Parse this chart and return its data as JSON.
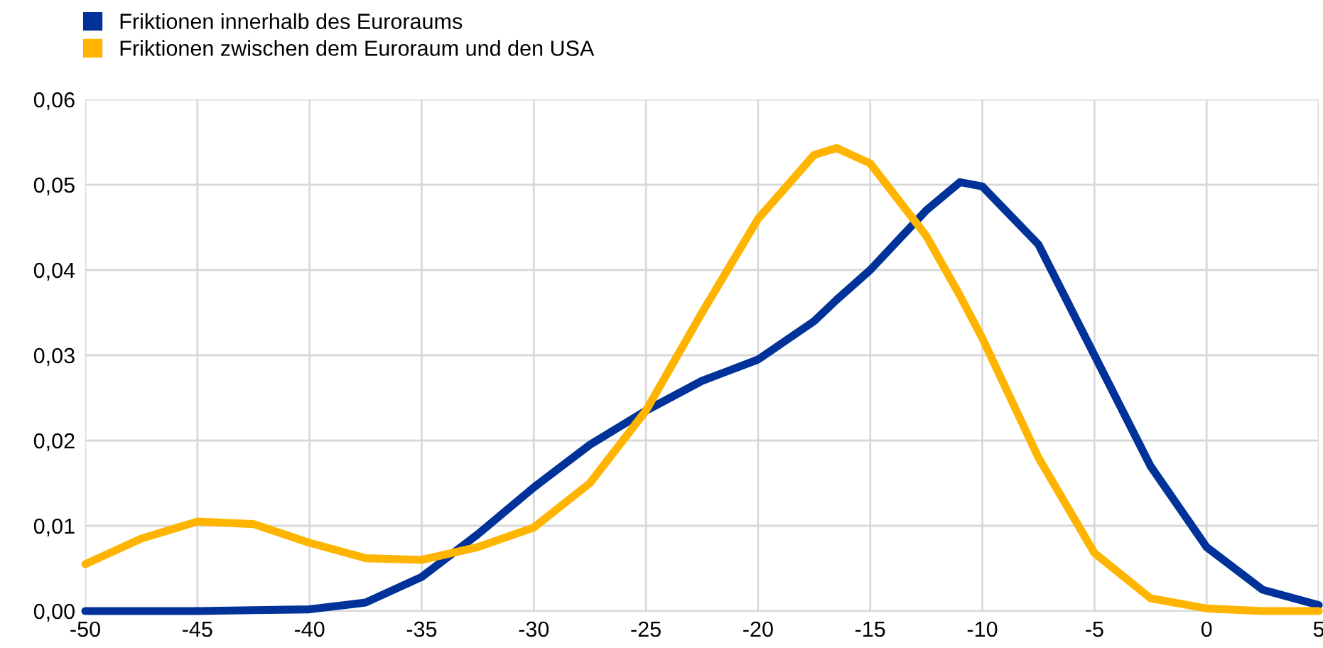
{
  "chart_data": {
    "type": "line",
    "x": [
      -50,
      -47.5,
      -45,
      -42.5,
      -40,
      -37.5,
      -35,
      -32.5,
      -30,
      -27.5,
      -25,
      -22.5,
      -20,
      -17.5,
      -16.5,
      -15,
      -12.5,
      -11,
      -10,
      -7.5,
      -5,
      -2.5,
      0,
      2.5,
      5
    ],
    "series": [
      {
        "name": "Friktionen innerhalb des Euroraums",
        "color": "#003299",
        "values": [
          0,
          0,
          0,
          0.0001,
          0.0002,
          0.001,
          0.004,
          0.009,
          0.0145,
          0.0195,
          0.0235,
          0.027,
          0.0295,
          0.034,
          0.0365,
          0.04,
          0.047,
          0.0503,
          0.0498,
          0.043,
          0.03,
          0.017,
          0.0075,
          0.0025,
          0.0007
        ]
      },
      {
        "name": "Friktionen zwischen dem Euroraum und den USA",
        "color": "#ffb400",
        "values": [
          0.0055,
          0.0085,
          0.0105,
          0.0102,
          0.008,
          0.0062,
          0.006,
          0.0075,
          0.0098,
          0.015,
          0.0235,
          0.035,
          0.046,
          0.0535,
          0.0543,
          0.0525,
          0.044,
          0.037,
          0.032,
          0.018,
          0.0068,
          0.0015,
          0.0003,
          0,
          0
        ]
      }
    ],
    "xlim": [
      -50,
      5
    ],
    "xticks": [
      -50,
      -45,
      -40,
      -35,
      -30,
      -25,
      -20,
      -15,
      -10,
      -5,
      0,
      5
    ],
    "ylim": [
      0,
      0.06
    ],
    "yticks": [
      {
        "value": 0,
        "label": "0,00"
      },
      {
        "value": 0.01,
        "label": "0,01"
      },
      {
        "value": 0.02,
        "label": "0,02"
      },
      {
        "value": 0.03,
        "label": "0,03"
      },
      {
        "value": 0.04,
        "label": "0,04"
      },
      {
        "value": 0.05,
        "label": "0,05"
      },
      {
        "value": 0.06,
        "label": "0,06"
      }
    ],
    "grid": true,
    "legend": "top left",
    "marker": "none",
    "line_style": "solid"
  }
}
